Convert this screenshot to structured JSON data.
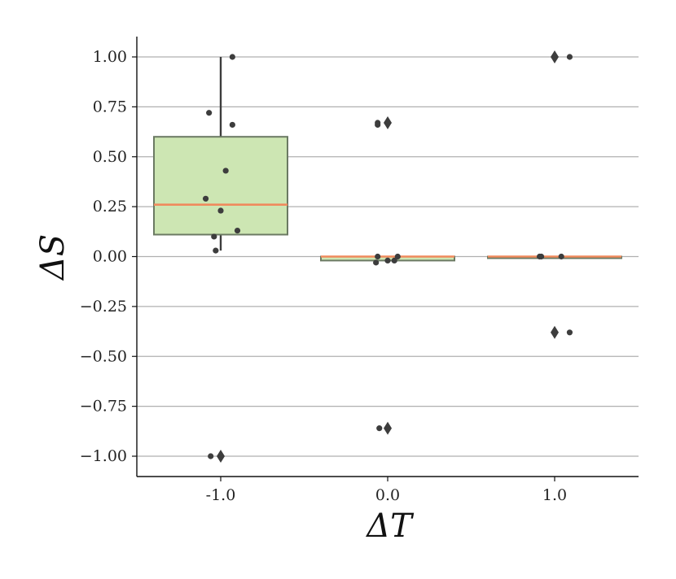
{
  "chart_data": {
    "type": "box",
    "xlabel": "ΔT",
    "ylabel": "ΔS",
    "categories": [
      "-1.0",
      "0.0",
      "1.0"
    ],
    "y_ticks": [
      "1.00",
      "0.75",
      "0.50",
      "0.25",
      "0.00",
      "−0.25",
      "−0.50",
      "−0.75",
      "−1.00"
    ],
    "y_tick_values": [
      1.0,
      0.75,
      0.5,
      0.25,
      0.0,
      -0.25,
      -0.5,
      -0.75,
      -1.0
    ],
    "ylim": [
      -1.1,
      1.1
    ],
    "grid": "horizontal",
    "colors": {
      "box_fill": "#cde6b3",
      "box_edge": "#6b7a63",
      "median": "#f08a5d",
      "point": "#3d3d3d",
      "grid": "#b0b0b0"
    },
    "boxes": [
      {
        "category": "-1.0",
        "q1": 0.11,
        "median": 0.26,
        "q3": 0.6,
        "whisker_low": 0.03,
        "whisker_high": 1.0,
        "outliers": [
          -1.0
        ]
      },
      {
        "category": "0.0",
        "q1": -0.02,
        "median": 0.0,
        "q3": 0.0,
        "whisker_low": -0.02,
        "whisker_high": 0.0,
        "outliers": [
          0.67,
          -0.86
        ]
      },
      {
        "category": "1.0",
        "q1": 0.0,
        "median": 0.0,
        "q3": 0.0,
        "whisker_low": 0.0,
        "whisker_high": 0.0,
        "outliers": [
          1.0,
          -0.38
        ]
      }
    ],
    "points": [
      {
        "category": "-1.0",
        "jitter": 0.07,
        "y": 1.0
      },
      {
        "category": "-1.0",
        "jitter": -0.07,
        "y": 0.72
      },
      {
        "category": "-1.0",
        "jitter": 0.07,
        "y": 0.66
      },
      {
        "category": "-1.0",
        "jitter": 0.03,
        "y": 0.43
      },
      {
        "category": "-1.0",
        "jitter": -0.09,
        "y": 0.29
      },
      {
        "category": "-1.0",
        "jitter": 0.0,
        "y": 0.23
      },
      {
        "category": "-1.0",
        "jitter": 0.1,
        "y": 0.13
      },
      {
        "category": "-1.0",
        "jitter": -0.04,
        "y": 0.1
      },
      {
        "category": "-1.0",
        "jitter": -0.03,
        "y": 0.03
      },
      {
        "category": "-1.0",
        "jitter": -0.06,
        "y": -1.0
      },
      {
        "category": "0.0",
        "jitter": -0.06,
        "y": 0.67
      },
      {
        "category": "0.0",
        "jitter": -0.06,
        "y": 0.66
      },
      {
        "category": "0.0",
        "jitter": -0.06,
        "y": 0.0
      },
      {
        "category": "0.0",
        "jitter": 0.06,
        "y": 0.0
      },
      {
        "category": "0.0",
        "jitter": -0.07,
        "y": -0.03
      },
      {
        "category": "0.0",
        "jitter": 0.0,
        "y": -0.02
      },
      {
        "category": "0.0",
        "jitter": 0.04,
        "y": -0.02
      },
      {
        "category": "0.0",
        "jitter": -0.05,
        "y": -0.86
      },
      {
        "category": "1.0",
        "jitter": 0.09,
        "y": 1.0
      },
      {
        "category": "1.0",
        "jitter": -0.08,
        "y": 0.0
      },
      {
        "category": "1.0",
        "jitter": -0.09,
        "y": 0.0
      },
      {
        "category": "1.0",
        "jitter": 0.04,
        "y": 0.0
      },
      {
        "category": "1.0",
        "jitter": 0.09,
        "y": -0.38
      }
    ]
  }
}
